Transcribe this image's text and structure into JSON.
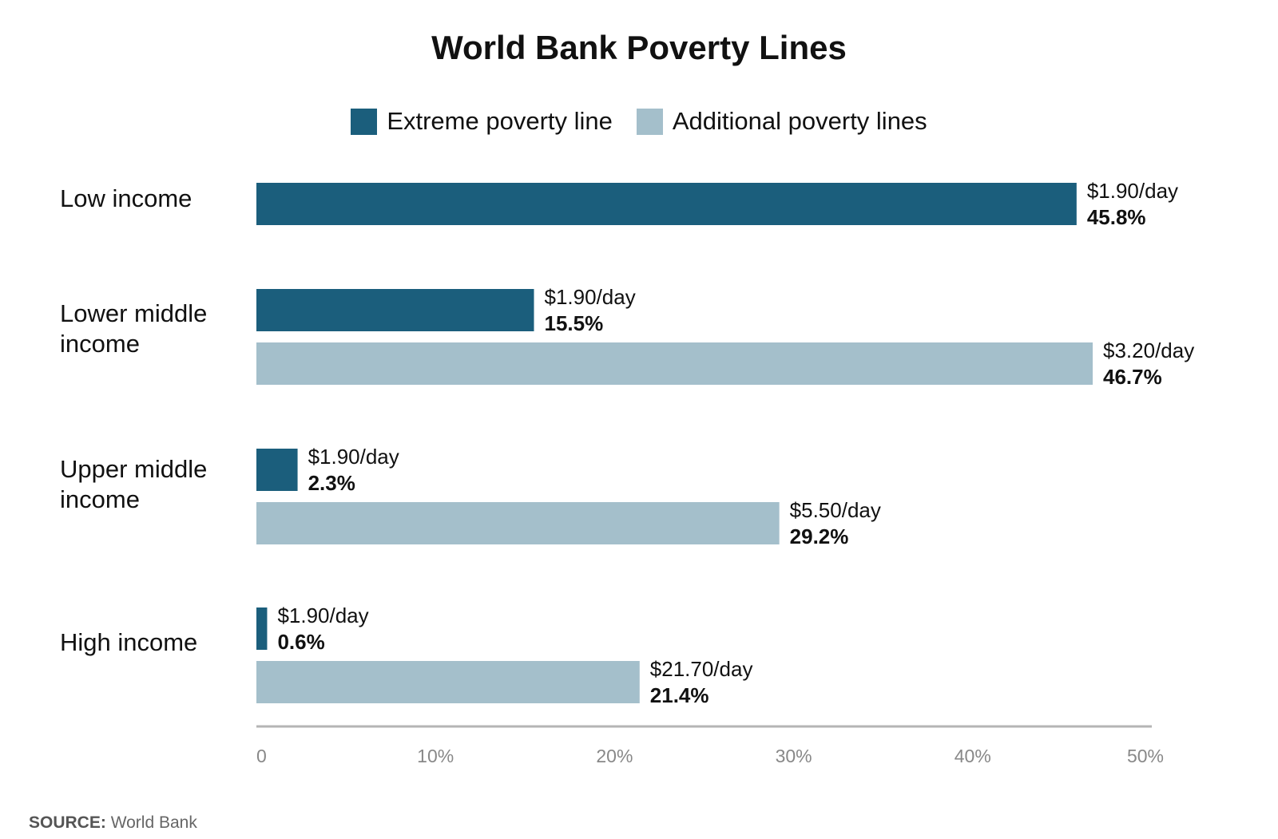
{
  "title": "World Bank Poverty Lines",
  "legend": {
    "extreme": {
      "label": "Extreme poverty line",
      "color": "#1b5e7c"
    },
    "additional": {
      "label": "Additional poverty lines",
      "color": "#a4bfcb"
    }
  },
  "categories": [
    "Low income",
    "Lower middle income",
    "Upper middle income",
    "High income"
  ],
  "source": {
    "label": "SOURCE:",
    "text": "World Bank"
  },
  "chart_data": {
    "type": "bar",
    "orientation": "horizontal",
    "title": "World Bank Poverty Lines",
    "categories": [
      "Low income",
      "Lower middle income",
      "Upper middle income",
      "High income"
    ],
    "series": [
      {
        "name": "Extreme poverty line",
        "color": "#1b5e7c",
        "values": [
          45.8,
          15.5,
          2.3,
          0.6
        ],
        "line_labels": [
          "$1.90/day",
          "$1.90/day",
          "$1.90/day",
          "$1.90/day"
        ],
        "value_labels": [
          "45.8%",
          "15.5%",
          "2.3%",
          "0.6%"
        ]
      },
      {
        "name": "Additional poverty lines",
        "color": "#a4bfcb",
        "values": [
          null,
          46.7,
          29.2,
          21.4
        ],
        "line_labels": [
          null,
          "$3.20/day",
          "$5.50/day",
          "$21.70/day"
        ],
        "value_labels": [
          null,
          "46.7%",
          "29.2%",
          "21.4%"
        ]
      }
    ],
    "xlim": [
      0,
      50
    ],
    "xticks": [
      0,
      10,
      20,
      30,
      40,
      50
    ],
    "xtick_labels": [
      "0",
      "10%",
      "20%",
      "30%",
      "40%",
      "50%"
    ],
    "grid": false,
    "legend_position": "top"
  }
}
